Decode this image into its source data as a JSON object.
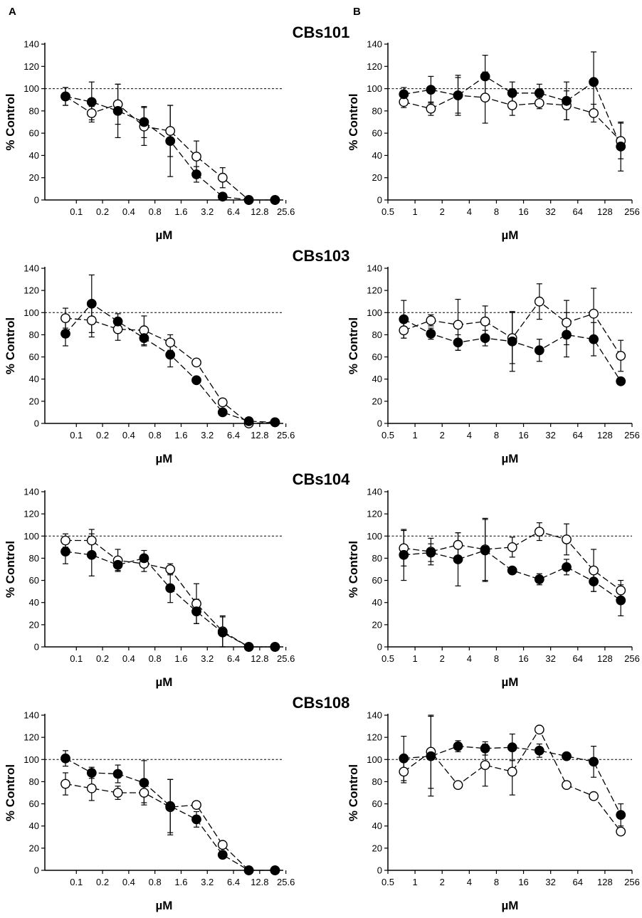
{
  "panel_labels": {
    "left": "A",
    "right": "B"
  },
  "styles": {
    "filled_color": "#000000",
    "open_color": "#ffffff",
    "line_color": "#000000"
  },
  "chart_data": [
    {
      "type": "line",
      "row_title": "CBs101",
      "panel": "A",
      "xlabel": "µM",
      "ylabel": "% Control",
      "ylim": [
        0,
        140
      ],
      "yticks": [
        0,
        20,
        40,
        60,
        80,
        100,
        120,
        140
      ],
      "xticks": [
        "0.1",
        "0.2",
        "0.4",
        "0.8",
        "1.6",
        "3.2",
        "6.4",
        "12.8",
        "25.6"
      ],
      "reference_line": 100,
      "x": [
        0.075,
        0.15,
        0.3,
        0.6,
        1.2,
        2.4,
        4.8,
        9.6,
        19.2
      ],
      "series": [
        {
          "name": "filled",
          "marker": "filled-circle",
          "values": [
            93,
            88,
            80,
            70,
            53,
            23,
            3,
            0,
            0
          ],
          "errors": [
            8,
            18,
            24,
            14,
            32,
            7,
            0,
            0,
            0
          ]
        },
        {
          "name": "open",
          "marker": "open-circle",
          "values": [
            93,
            78,
            86,
            66,
            62,
            39,
            20,
            0,
            0
          ],
          "errors": [
            8,
            6,
            18,
            17,
            23,
            14,
            9,
            0,
            0
          ]
        }
      ]
    },
    {
      "type": "line",
      "row_title": "CBs101",
      "panel": "B",
      "xlabel": "µM",
      "ylabel": "% Control",
      "ylim": [
        0,
        140
      ],
      "yticks": [
        0,
        20,
        40,
        60,
        80,
        100,
        120,
        140
      ],
      "xticks": [
        "0.5",
        "1",
        "2",
        "4",
        "8",
        "16",
        "32",
        "64",
        "128",
        "256"
      ],
      "reference_line": 100,
      "x": [
        0.75,
        1.5,
        3,
        6,
        12,
        24,
        48,
        96,
        192
      ],
      "series": [
        {
          "name": "filled",
          "marker": "filled-circle",
          "values": [
            95,
            99,
            94,
            111,
            96,
            96,
            89,
            106,
            48
          ],
          "errors": [
            6,
            12,
            16,
            19,
            10,
            8,
            17,
            27,
            22
          ]
        },
        {
          "name": "open",
          "marker": "open-circle",
          "values": [
            88,
            82,
            94,
            92,
            85,
            87,
            85,
            78,
            53
          ],
          "errors": [
            5,
            6,
            18,
            23,
            9,
            5,
            13,
            8,
            16
          ]
        }
      ]
    },
    {
      "type": "line",
      "row_title": "CBs103",
      "panel": "A",
      "xlabel": "µM",
      "ylabel": "% Control",
      "ylim": [
        0,
        140
      ],
      "yticks": [
        0,
        20,
        40,
        60,
        80,
        100,
        120,
        140
      ],
      "xticks": [
        "0.1",
        "0.2",
        "0.4",
        "0.8",
        "1.6",
        "3.2",
        "6.4",
        "12.8",
        "25.6"
      ],
      "reference_line": 100,
      "x": [
        0.075,
        0.15,
        0.3,
        0.6,
        1.2,
        2.4,
        4.8,
        9.6,
        19.2
      ],
      "series": [
        {
          "name": "filled",
          "marker": "filled-circle",
          "values": [
            81,
            108,
            92,
            77,
            62,
            39,
            10,
            2,
            1
          ],
          "errors": [
            11,
            26,
            7,
            7,
            11,
            0,
            0,
            0,
            0
          ]
        },
        {
          "name": "open",
          "marker": "open-circle",
          "values": [
            95,
            93,
            85,
            84,
            73,
            55,
            19,
            0,
            1
          ],
          "errors": [
            9,
            15,
            10,
            13,
            7,
            0,
            0,
            0,
            0
          ]
        }
      ]
    },
    {
      "type": "line",
      "row_title": "CBs103",
      "panel": "B",
      "xlabel": "µM",
      "ylabel": "% Control",
      "ylim": [
        0,
        140
      ],
      "yticks": [
        0,
        20,
        40,
        60,
        80,
        100,
        120,
        140
      ],
      "xticks": [
        "0.5",
        "1",
        "2",
        "4",
        "8",
        "16",
        "32",
        "64",
        "128",
        "256"
      ],
      "reference_line": 100,
      "x": [
        0.75,
        1.5,
        3,
        6,
        12,
        24,
        48,
        96,
        192
      ],
      "series": [
        {
          "name": "filled",
          "marker": "filled-circle",
          "values": [
            94,
            81,
            73,
            77,
            74,
            66,
            80,
            76,
            38
          ],
          "errors": [
            17,
            5,
            7,
            7,
            27,
            10,
            20,
            15,
            0
          ]
        },
        {
          "name": "open",
          "marker": "open-circle",
          "values": [
            84,
            93,
            89,
            92,
            77,
            110,
            91,
            99,
            61
          ],
          "errors": [
            7,
            5,
            23,
            14,
            23,
            16,
            20,
            23,
            14
          ]
        }
      ]
    },
    {
      "type": "line",
      "row_title": "CBs104",
      "panel": "A",
      "xlabel": "µM",
      "ylabel": "% Control",
      "ylim": [
        0,
        140
      ],
      "yticks": [
        0,
        20,
        40,
        60,
        80,
        100,
        120,
        140
      ],
      "xticks": [
        "0.1",
        "0.2",
        "0.4",
        "0.8",
        "1.6",
        "3.2",
        "6.4",
        "12.8",
        "25.6"
      ],
      "reference_line": 100,
      "x": [
        0.075,
        0.15,
        0.3,
        0.6,
        1.2,
        2.4,
        4.8,
        9.6,
        19.2
      ],
      "series": [
        {
          "name": "filled",
          "marker": "filled-circle",
          "values": [
            86,
            83,
            74,
            80,
            53,
            32,
            13,
            0,
            0
          ],
          "errors": [
            11,
            19,
            5,
            7,
            13,
            11,
            14,
            0,
            0
          ]
        },
        {
          "name": "open",
          "marker": "open-circle",
          "values": [
            96,
            96,
            78,
            75,
            70,
            39,
            14,
            0,
            0
          ],
          "errors": [
            6,
            10,
            10,
            7,
            5,
            18,
            14,
            0,
            0
          ]
        }
      ]
    },
    {
      "type": "line",
      "row_title": "CBs104",
      "panel": "B",
      "xlabel": "µM",
      "ylabel": "% Control",
      "ylim": [
        0,
        140
      ],
      "yticks": [
        0,
        20,
        40,
        60,
        80,
        100,
        120,
        140
      ],
      "xticks": [
        "0.5",
        "1",
        "2",
        "4",
        "8",
        "16",
        "32",
        "64",
        "128",
        "256"
      ],
      "reference_line": 100,
      "x": [
        0.75,
        1.5,
        3,
        6,
        12,
        24,
        48,
        96,
        192
      ],
      "series": [
        {
          "name": "filled",
          "marker": "filled-circle",
          "values": [
            83,
            85,
            79,
            87,
            69,
            61,
            72,
            59,
            42
          ],
          "errors": [
            23,
            8,
            24,
            28,
            0,
            5,
            7,
            9,
            14
          ]
        },
        {
          "name": "open",
          "marker": "open-circle",
          "values": [
            89,
            86,
            92,
            88,
            90,
            104,
            97,
            69,
            51
          ],
          "errors": [
            16,
            12,
            11,
            28,
            9,
            8,
            14,
            19,
            9
          ]
        }
      ]
    },
    {
      "type": "line",
      "row_title": "CBs108",
      "panel": "A",
      "xlabel": "µM",
      "ylabel": "% Control",
      "ylim": [
        0,
        140
      ],
      "yticks": [
        0,
        20,
        40,
        60,
        80,
        100,
        120,
        140
      ],
      "xticks": [
        "0.1",
        "0.2",
        "0.4",
        "0.8",
        "1.6",
        "3.2",
        "6.4",
        "12.8",
        "25.6"
      ],
      "reference_line": 100,
      "x": [
        0.075,
        0.15,
        0.3,
        0.6,
        1.2,
        2.4,
        4.8,
        9.6,
        19.2
      ],
      "series": [
        {
          "name": "filled",
          "marker": "filled-circle",
          "values": [
            101,
            88,
            87,
            79,
            58,
            46,
            14,
            0,
            0
          ],
          "errors": [
            7,
            5,
            8,
            20,
            24,
            7,
            0,
            0,
            0
          ]
        },
        {
          "name": "open",
          "marker": "open-circle",
          "values": [
            78,
            74,
            70,
            70,
            57,
            59,
            23,
            0,
            0
          ],
          "errors": [
            10,
            11,
            6,
            9,
            25,
            0,
            0,
            0,
            0
          ]
        }
      ]
    },
    {
      "type": "line",
      "row_title": "CBs108",
      "panel": "B",
      "xlabel": "µM",
      "ylabel": "% Control",
      "ylim": [
        0,
        140
      ],
      "yticks": [
        0,
        20,
        40,
        60,
        80,
        100,
        120,
        140
      ],
      "xticks": [
        "0.5",
        "1",
        "2",
        "4",
        "8",
        "16",
        "32",
        "64",
        "128",
        "256"
      ],
      "reference_line": 100,
      "x": [
        0.75,
        1.5,
        3,
        6,
        12,
        24,
        48,
        96,
        192
      ],
      "series": [
        {
          "name": "filled",
          "marker": "filled-circle",
          "values": [
            101,
            103,
            112,
            110,
            111,
            108,
            103,
            98,
            50
          ],
          "errors": [
            20,
            36,
            5,
            6,
            12,
            6,
            0,
            14,
            10
          ]
        },
        {
          "name": "open",
          "marker": "open-circle",
          "values": [
            89,
            107,
            77,
            95,
            89,
            127,
            77,
            67,
            35
          ],
          "errors": [
            10,
            33,
            0,
            19,
            21,
            0,
            0,
            0,
            0
          ]
        }
      ]
    }
  ]
}
